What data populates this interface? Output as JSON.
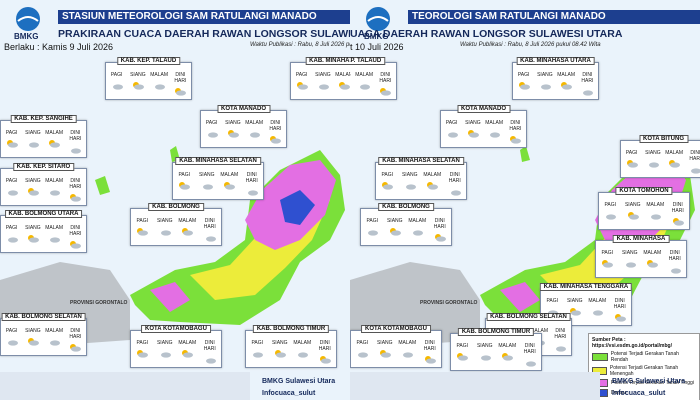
{
  "periods": [
    "PAGI",
    "SIANG",
    "MALAM",
    "DINI HARI"
  ],
  "logo": "BMKG",
  "map_label": "PROVINSI GORONTALO",
  "panels": [
    {
      "station": "STASIUN METEOROLOGI SAM RATULANGI MANADO",
      "title": "PRAKIRAAN CUACA DAERAH RAWAN LONGSOR SULAWESI UT",
      "date": "Berlaku : Kamis 9 Juli 2026",
      "published": "Waktu Publikasi : Rabu, 8 Juli 2026 pukul 08.",
      "regions": [
        {
          "name": "KAB. KEP. TALAUD"
        },
        {
          "name": "KAB. MINAHASA"
        },
        {
          "name": "KOTA MANADO"
        },
        {
          "name": "KAB. KEP. SANGIHE"
        },
        {
          "name": "KAB. KEP. SITARO"
        },
        {
          "name": "KAB. MINAHASA SELATAN"
        },
        {
          "name": "KAB. BOLMONG UTARA"
        },
        {
          "name": "KAB. BOLMONG"
        },
        {
          "name": "KAB. BOLMONG SELATAN"
        },
        {
          "name": "KOTA KOTAMOBAGU"
        },
        {
          "name": "KAB. BOLMONG TIMUR"
        }
      ],
      "footer": {
        "account": "BMKG Sulawesi Utara",
        "social": "Infocuaca_sulut"
      }
    },
    {
      "station": "TEOROLOGI SAM RATULANGI MANADO",
      "title": "UACA DAERAH RAWAN LONGSOR SULAWESI UTARA",
      "date": "t 10 Juli 2026",
      "published": "Waktu Publikasi : Rabu, 8 Juli 2026 pukul 08.42 Wita",
      "regions": [
        {
          "name": "KAB. KEP. TALAUD"
        },
        {
          "name": "KAB. MINAHASA UTARA"
        },
        {
          "name": "KOTA MANADO"
        },
        {
          "name": "KAB. MINAHASA SELATAN"
        },
        {
          "name": "KAB. BOLMONG"
        },
        {
          "name": "KOTA BITUNG"
        },
        {
          "name": "KOTA TOMOHON"
        },
        {
          "name": "KAB. MINAHASA"
        },
        {
          "name": "KAB. MINAHASA TENGGARA"
        },
        {
          "name": "KAB. BOLMONG SELATAN"
        },
        {
          "name": "KOTA KOTAMOBAGU"
        },
        {
          "name": "KAB. BOLMONG TIMUR"
        }
      ],
      "legend": {
        "source": "Sumber Peta :",
        "url": "https://vsi.esdm.go.id/portal/mbg/",
        "items": [
          "Potensi Terjadi Gerakan Tanah Rendah",
          "Potensi Terjadi Gerakan Tanah Menengah",
          "Potensi Terjadi Gerakan Tanah Tinggi",
          "Danau"
        ]
      },
      "footer": {
        "account": "BMKG Sulawesi Utara",
        "social": "Infocuaca_sulut"
      }
    }
  ]
}
